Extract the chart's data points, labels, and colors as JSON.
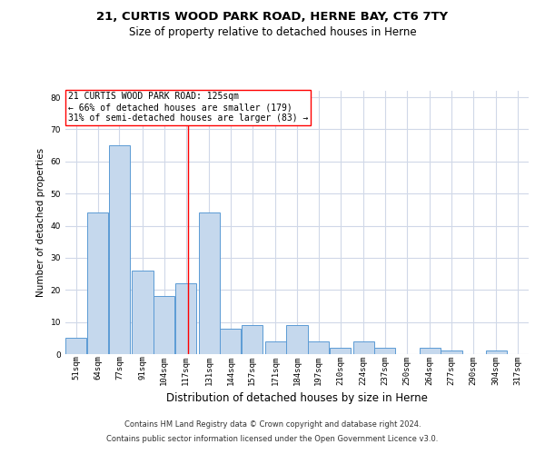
{
  "title1": "21, CURTIS WOOD PARK ROAD, HERNE BAY, CT6 7TY",
  "title2": "Size of property relative to detached houses in Herne",
  "xlabel": "Distribution of detached houses by size in Herne",
  "ylabel": "Number of detached properties",
  "footnote1": "Contains HM Land Registry data © Crown copyright and database right 2024.",
  "footnote2": "Contains public sector information licensed under the Open Government Licence v3.0.",
  "annotation_line1": "21 CURTIS WOOD PARK ROAD: 125sqm",
  "annotation_line2": "← 66% of detached houses are smaller (179)",
  "annotation_line3": "31% of semi-detached houses are larger (83) →",
  "bar_color": "#c5d8ed",
  "bar_edge_color": "#5b9bd5",
  "red_line_x": 125,
  "categories": [
    "51sqm",
    "64sqm",
    "77sqm",
    "91sqm",
    "104sqm",
    "117sqm",
    "131sqm",
    "144sqm",
    "157sqm",
    "171sqm",
    "184sqm",
    "197sqm",
    "210sqm",
    "224sqm",
    "237sqm",
    "250sqm",
    "264sqm",
    "277sqm",
    "290sqm",
    "304sqm",
    "317sqm"
  ],
  "bin_edges": [
    51,
    64,
    77,
    91,
    104,
    117,
    131,
    144,
    157,
    171,
    184,
    197,
    210,
    224,
    237,
    250,
    264,
    277,
    290,
    304,
    317,
    330
  ],
  "values": [
    5,
    44,
    65,
    26,
    18,
    22,
    44,
    8,
    9,
    4,
    9,
    4,
    2,
    4,
    2,
    0,
    2,
    1,
    0,
    1,
    0
  ],
  "ylim": [
    0,
    82
  ],
  "yticks": [
    0,
    10,
    20,
    30,
    40,
    50,
    60,
    70,
    80
  ],
  "background_color": "#ffffff",
  "grid_color": "#d0d8e8",
  "title1_fontsize": 9.5,
  "title2_fontsize": 8.5,
  "xlabel_fontsize": 8.5,
  "ylabel_fontsize": 7.5,
  "tick_fontsize": 6.5,
  "footnote_fontsize": 6.0,
  "annot_fontsize": 7.0
}
